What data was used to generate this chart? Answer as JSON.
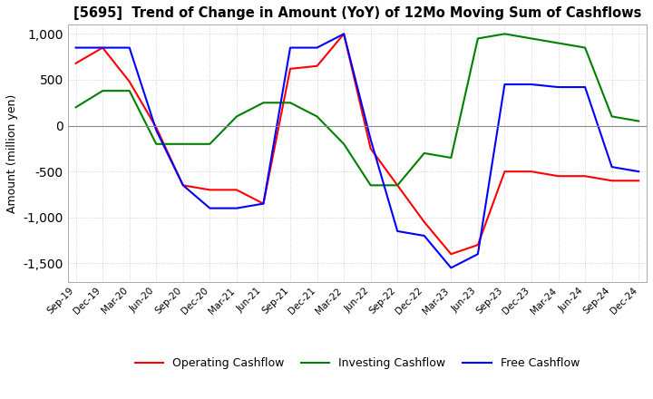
{
  "title": "[5695]  Trend of Change in Amount (YoY) of 12Mo Moving Sum of Cashflows",
  "ylabel": "Amount (million yen)",
  "ylim": [
    -1700,
    1100
  ],
  "yticks": [
    -1500,
    -1000,
    -500,
    0,
    500,
    1000
  ],
  "legend": [
    "Operating Cashflow",
    "Investing Cashflow",
    "Free Cashflow"
  ],
  "colors": [
    "#ff0000",
    "#008000",
    "#0000ff"
  ],
  "x_labels": [
    "Sep-19",
    "Dec-19",
    "Mar-20",
    "Jun-20",
    "Sep-20",
    "Dec-20",
    "Mar-21",
    "Jun-21",
    "Sep-21",
    "Dec-21",
    "Mar-22",
    "Jun-22",
    "Sep-22",
    "Dec-22",
    "Mar-23",
    "Jun-23",
    "Sep-23",
    "Dec-23",
    "Mar-24",
    "Jun-24",
    "Sep-24",
    "Dec-24"
  ],
  "operating": [
    680,
    850,
    480,
    -20,
    -650,
    -700,
    -700,
    -850,
    620,
    650,
    1000,
    -250,
    -650,
    -1050,
    -1400,
    -1300,
    -500,
    -500,
    -550,
    -550,
    -600,
    -600
  ],
  "investing": [
    200,
    380,
    380,
    -200,
    -200,
    -200,
    100,
    250,
    250,
    100,
    -200,
    -650,
    -650,
    -300,
    -350,
    950,
    1000,
    950,
    900,
    850,
    100,
    50
  ],
  "free": [
    850,
    850,
    850,
    -50,
    -650,
    -900,
    -900,
    -850,
    850,
    850,
    1000,
    -150,
    -1150,
    -1200,
    -1550,
    -1400,
    450,
    450,
    420,
    420,
    -450,
    -500
  ],
  "background_color": "#ffffff",
  "grid_color": "#c8c8c8"
}
